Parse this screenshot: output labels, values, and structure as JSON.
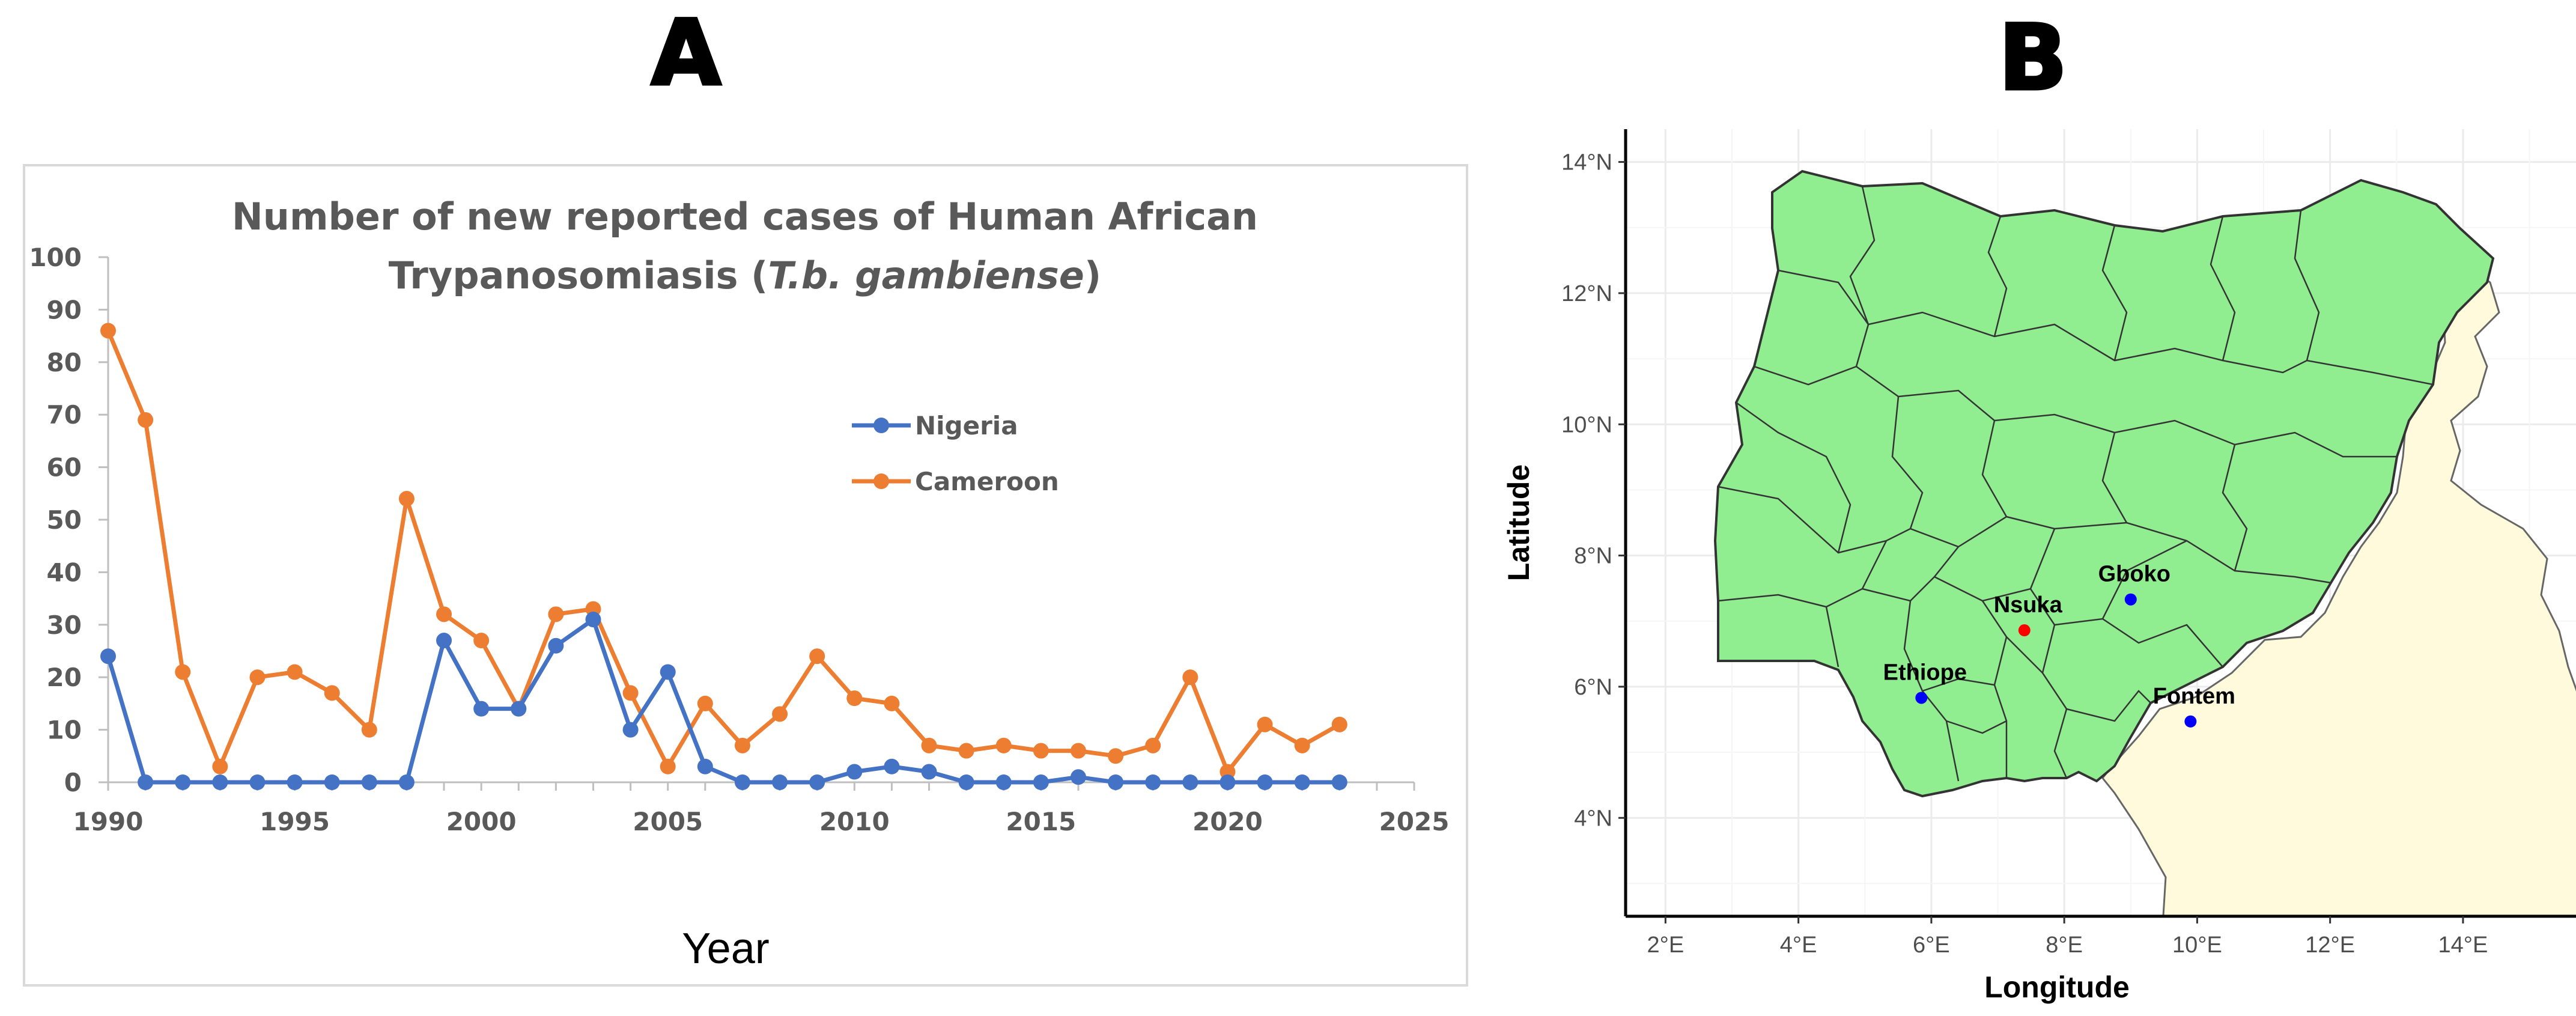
{
  "panels": {
    "a_letter": "A",
    "b_letter": "B"
  },
  "chart_data": [
    {
      "type": "line",
      "title_line1": "Number of new reported cases of Human African",
      "title_line2_prefix": "Trypanosomiasis (",
      "title_line2_italic": "T.b. gambiense",
      "title_line2_suffix": ")",
      "xlabel": "Year",
      "ylabel": "",
      "xlim": [
        1990,
        2025
      ],
      "ylim": [
        0,
        100
      ],
      "x_ticks": [
        1990,
        1995,
        2000,
        2005,
        2010,
        2015,
        2020,
        2025
      ],
      "y_ticks": [
        0,
        10,
        20,
        30,
        40,
        50,
        60,
        70,
        80,
        90,
        100
      ],
      "grid": false,
      "legend_position": "upper-right-inside",
      "x": [
        1990,
        1991,
        1992,
        1993,
        1994,
        1995,
        1996,
        1997,
        1998,
        1999,
        2000,
        2001,
        2002,
        2003,
        2004,
        2005,
        2006,
        2007,
        2008,
        2009,
        2010,
        2011,
        2012,
        2013,
        2014,
        2015,
        2016,
        2017,
        2018,
        2019,
        2020,
        2021,
        2022,
        2023
      ],
      "series": [
        {
          "name": "Nigeria",
          "color": "#4472c4",
          "values": [
            24,
            0,
            0,
            0,
            0,
            0,
            0,
            0,
            0,
            27,
            14,
            14,
            26,
            31,
            10,
            21,
            3,
            0,
            0,
            0,
            2,
            3,
            2,
            0,
            0,
            0,
            1,
            0,
            0,
            0,
            0,
            0,
            0,
            0
          ]
        },
        {
          "name": "Cameroon",
          "color": "#ed7d31",
          "values": [
            86,
            69,
            21,
            3,
            20,
            21,
            17,
            10,
            54,
            32,
            27,
            14,
            32,
            33,
            17,
            3,
            15,
            7,
            13,
            24,
            16,
            15,
            7,
            6,
            7,
            6,
            6,
            5,
            7,
            20,
            2,
            11,
            7,
            11
          ]
        }
      ]
    },
    {
      "type": "scatter",
      "subtype": "map",
      "xlabel": "Longitude",
      "ylabel": "Latitude",
      "xlim": [
        1.4,
        15.7
      ],
      "ylim": [
        2.5,
        14.5
      ],
      "x_ticks": [
        2,
        4,
        6,
        8,
        10,
        12,
        14
      ],
      "y_ticks": [
        4,
        6,
        8,
        10,
        12,
        14
      ],
      "x_tick_labels": [
        "2°E",
        "4°E",
        "6°E",
        "8°E",
        "10°E",
        "12°E",
        "14°E"
      ],
      "y_tick_labels": [
        "4°N",
        "6°N",
        "8°N",
        "10°N",
        "12°N",
        "14°N"
      ],
      "grid": true,
      "colors": {
        "nigeria_fill": "#90ee90",
        "cameroon_fill": "#fffadc",
        "border": "#333333",
        "grid": "#ebebeb"
      },
      "points": [
        {
          "name": "Gboko",
          "lon": 9.0,
          "lat": 7.33,
          "color": "#0000ff"
        },
        {
          "name": "Nsuka",
          "lon": 7.4,
          "lat": 6.86,
          "color": "#ff0000"
        },
        {
          "name": "Ethiope",
          "lon": 5.85,
          "lat": 5.83,
          "color": "#0000ff"
        },
        {
          "name": "Fontem",
          "lon": 9.9,
          "lat": 5.47,
          "color": "#0000ff"
        }
      ]
    }
  ]
}
